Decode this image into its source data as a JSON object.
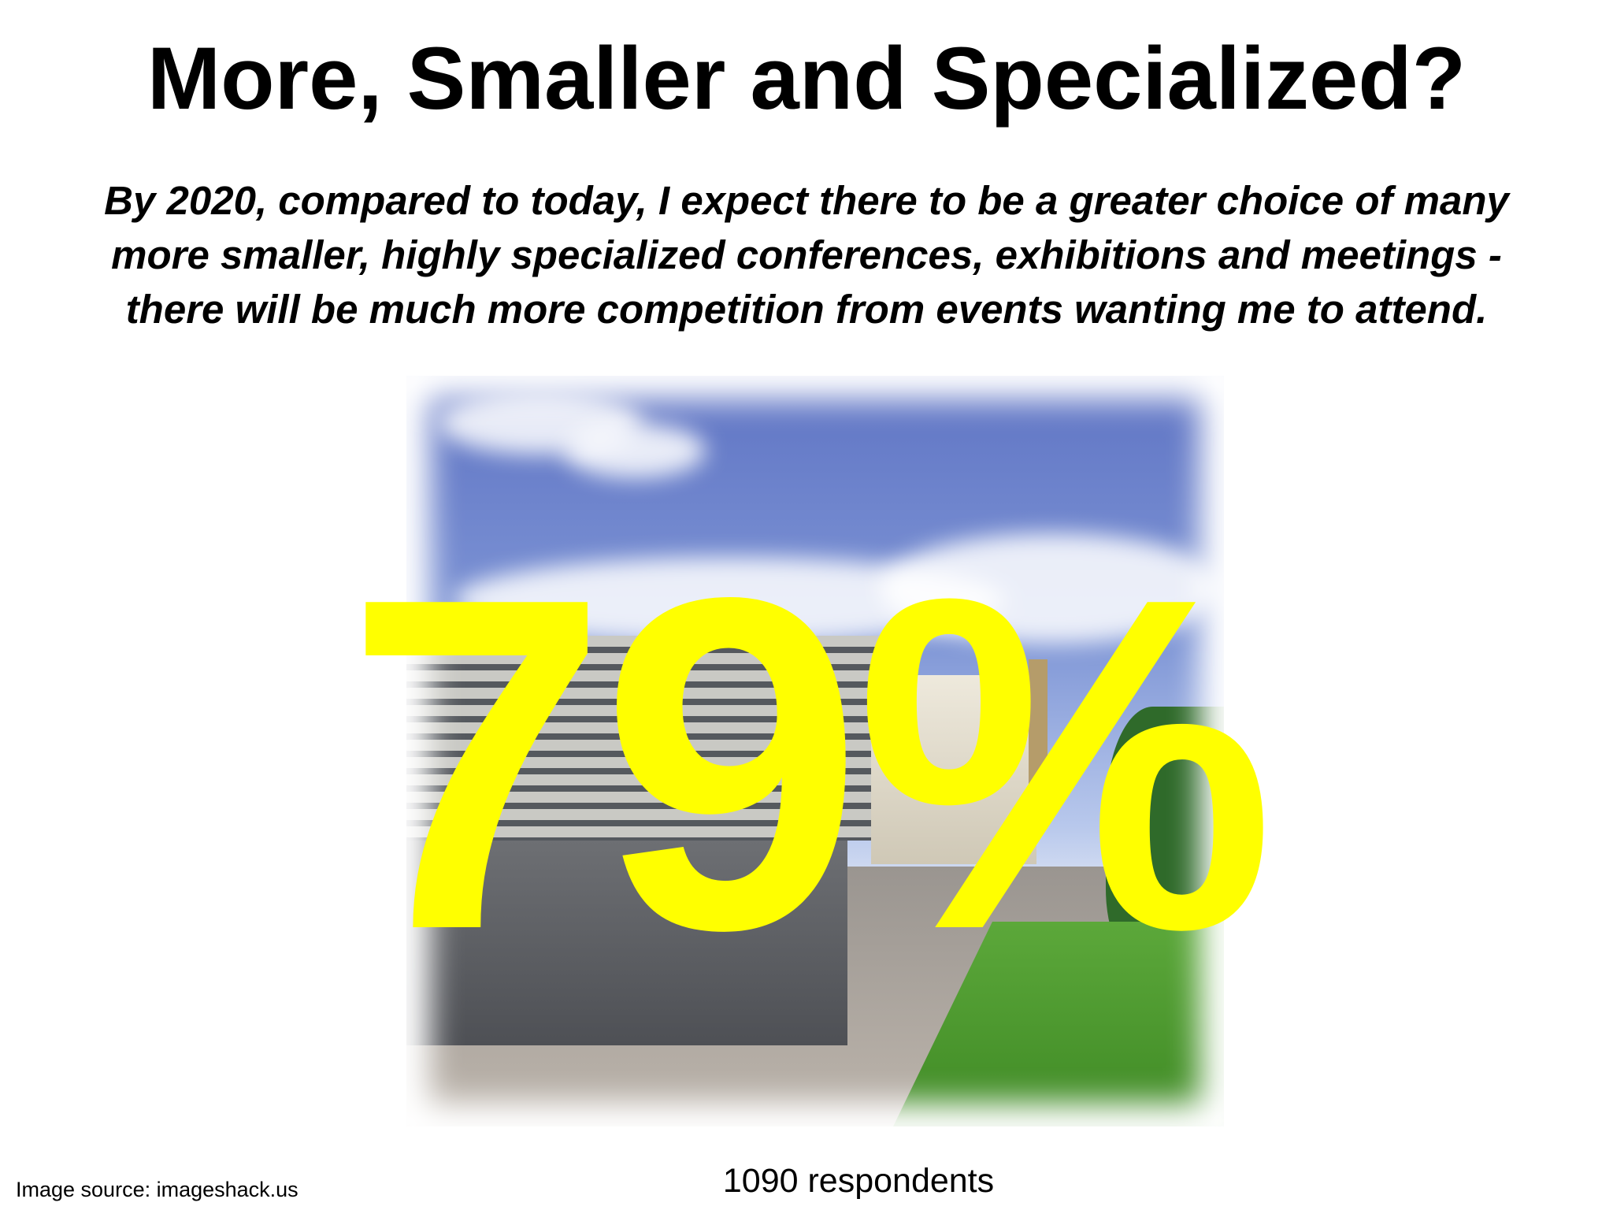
{
  "title": "More, Smaller and Specialized?",
  "subtitle": {
    "lines": [
      "By 2020, compared to today, I expect there to be a greater choice of many",
      "more smaller, highly specialized conferences, exhibitions and meetings -",
      "there will be much more competition from events wanting me to attend."
    ]
  },
  "stat": {
    "value": "79%",
    "color": "#ffff00"
  },
  "respondents": "1090 respondents",
  "image_source": "Image source: imageshack.us"
}
